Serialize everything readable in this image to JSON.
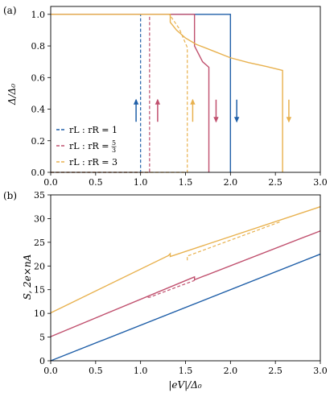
{
  "colors": {
    "series1": "#1f5fa8",
    "series2": "#c0506e",
    "series3": "#e8b14e"
  },
  "chart_data": [
    {
      "type": "line",
      "panel_label": "(a)",
      "xlabel": "",
      "ylabel": "Δ/Δ₀",
      "xlim": [
        0,
        3
      ],
      "ylim": [
        0,
        1.05
      ],
      "xticks": [
        "0.0",
        "0.5",
        "1.0",
        "1.5",
        "2.0",
        "2.5",
        "3.0"
      ],
      "yticks": [
        "0.0",
        "0.2",
        "0.4",
        "0.6",
        "0.8",
        "1.0"
      ],
      "legend_position": "bottom-left",
      "series": [
        {
          "name": "r_L : r_R = 1",
          "legend": {
            "main": "rL : rR = 1"
          },
          "solid": [
            [
              0,
              1.0
            ],
            [
              2.0,
              1.0
            ],
            [
              2.0,
              0.0
            ]
          ],
          "dashed": [
            [
              0.0,
              0.0
            ],
            [
              1.0,
              0.0
            ],
            [
              1.0,
              1.0
            ]
          ]
        },
        {
          "name": "r_L : r_R = 5/3",
          "legend": {
            "main": "rL : rR = ",
            "num": "5",
            "den": "3"
          },
          "solid": [
            [
              0,
              1.0
            ],
            [
              1.6,
              1.0
            ],
            [
              1.6,
              0.8
            ],
            [
              1.69,
              0.7
            ],
            [
              1.76,
              0.665
            ],
            [
              1.76,
              0.0
            ]
          ],
          "dashed": [
            [
              0.0,
              0.0
            ],
            [
              1.1,
              0.0
            ],
            [
              1.1,
              1.0
            ]
          ]
        },
        {
          "name": "r_L : r_R = 3",
          "legend": {
            "main": "rL : rR = 3"
          },
          "solid": [
            [
              0,
              1.0
            ],
            [
              1.33,
              1.0
            ],
            [
              1.33,
              0.95
            ],
            [
              1.4,
              0.9
            ],
            [
              1.5,
              0.85
            ],
            [
              1.62,
              0.81
            ],
            [
              1.8,
              0.77
            ],
            [
              2.0,
              0.725
            ],
            [
              2.2,
              0.695
            ],
            [
              2.4,
              0.67
            ],
            [
              2.58,
              0.645
            ],
            [
              2.58,
              0.0
            ]
          ],
          "dashed": [
            [
              0.0,
              0.0
            ],
            [
              1.52,
              0.0
            ],
            [
              1.52,
              0.79
            ],
            [
              1.43,
              0.91
            ],
            [
              1.32,
              1.0
            ]
          ]
        }
      ],
      "arrows": [
        {
          "series": 0,
          "x": 0.95,
          "y_from": 0.32,
          "y_to": 0.46,
          "dir": "up"
        },
        {
          "series": 1,
          "x": 1.19,
          "y_from": 0.32,
          "y_to": 0.46,
          "dir": "up"
        },
        {
          "series": 2,
          "x": 1.58,
          "y_from": 0.32,
          "y_to": 0.46,
          "dir": "up"
        },
        {
          "series": 1,
          "x": 1.84,
          "y_from": 0.46,
          "y_to": 0.32,
          "dir": "down"
        },
        {
          "series": 0,
          "x": 2.07,
          "y_from": 0.46,
          "y_to": 0.32,
          "dir": "down"
        },
        {
          "series": 2,
          "x": 2.65,
          "y_from": 0.46,
          "y_to": 0.32,
          "dir": "down"
        }
      ]
    },
    {
      "type": "line",
      "panel_label": "(b)",
      "xlabel": "|eV|/Δ₀",
      "ylabel": "S, 2e×nA",
      "xlim": [
        0,
        3
      ],
      "ylim": [
        0,
        35
      ],
      "xticks": [
        "0.0",
        "0.5",
        "1.0",
        "1.5",
        "2.0",
        "2.5",
        "3.0"
      ],
      "yticks": [
        "0",
        "5",
        "10",
        "15",
        "20",
        "25",
        "30",
        "35"
      ],
      "series": [
        {
          "name": "r_L : r_R = 1",
          "solid": [
            [
              0,
              0.0
            ],
            [
              3.0,
              22.5
            ]
          ],
          "dashed": []
        },
        {
          "name": "r_L : r_R = 5/3",
          "solid": [
            [
              0,
              5.1
            ],
            [
              1.6,
              17.7
            ],
            [
              1.6,
              17.1
            ],
            [
              3.0,
              27.4
            ]
          ],
          "dashed": [
            [
              1.08,
              13.4
            ],
            [
              1.1,
              13.4
            ],
            [
              1.6,
              16.95
            ]
          ]
        },
        {
          "name": "r_L : r_R = 3",
          "solid": [
            [
              0,
              10.1
            ],
            [
              1.31,
              22.2
            ],
            [
              1.33,
              22.6
            ],
            [
              1.33,
              22.0
            ],
            [
              3.0,
              32.5
            ]
          ],
          "dashed": [
            [
              1.52,
              21.2
            ],
            [
              1.52,
              22.1
            ],
            [
              2.55,
              29.3
            ]
          ]
        }
      ]
    }
  ]
}
